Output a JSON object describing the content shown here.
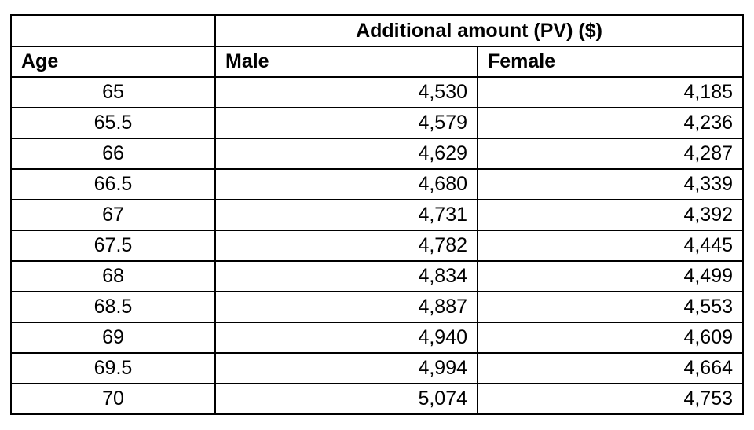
{
  "table": {
    "merged_header": "Additional amount (PV) ($)",
    "columns": [
      "Age",
      "Male",
      "Female"
    ],
    "rows": [
      [
        "65",
        "4,530",
        "4,185"
      ],
      [
        "65.5",
        "4,579",
        "4,236"
      ],
      [
        "66",
        "4,629",
        "4,287"
      ],
      [
        "66.5",
        "4,680",
        "4,339"
      ],
      [
        "67",
        "4,731",
        "4,392"
      ],
      [
        "67.5",
        "4,782",
        "4,445"
      ],
      [
        "68",
        "4,834",
        "4,499"
      ],
      [
        "68.5",
        "4,887",
        "4,553"
      ],
      [
        "69",
        "4,940",
        "4,609"
      ],
      [
        "69.5",
        "4,994",
        "4,664"
      ],
      [
        "70",
        "5,074",
        "4,753"
      ]
    ],
    "colors": {
      "border": "#000000",
      "background": "#ffffff",
      "text": "#000000"
    }
  }
}
